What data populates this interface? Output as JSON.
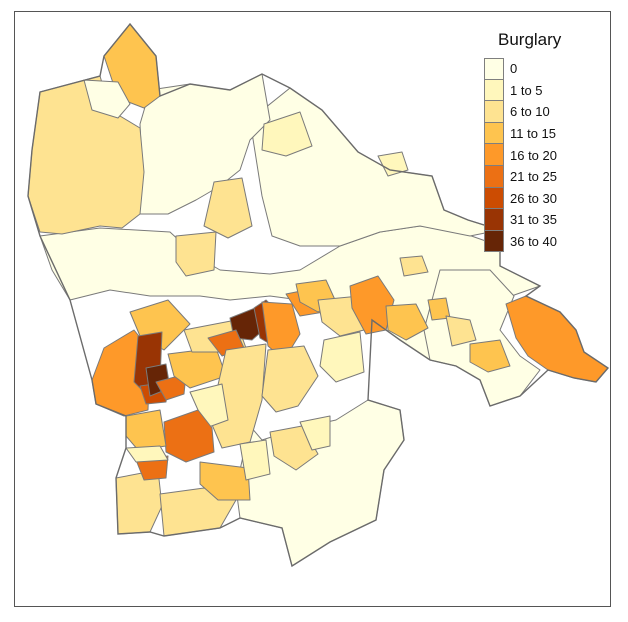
{
  "map": {
    "legend": {
      "title": "Burglary",
      "classes": [
        {
          "label": "0",
          "color": "#FFFFE5"
        },
        {
          "label": "1 to 5",
          "color": "#FFF7BC"
        },
        {
          "label": "6 to 10",
          "color": "#FEE391"
        },
        {
          "label": "11 to 15",
          "color": "#FEC44F"
        },
        {
          "label": "16 to 20",
          "color": "#FE9929"
        },
        {
          "label": "21 to 25",
          "color": "#EC7014"
        },
        {
          "label": "26 to 30",
          "color": "#CC4C02"
        },
        {
          "label": "31 to 35",
          "color": "#993404"
        },
        {
          "label": "36 to 40",
          "color": "#662506"
        }
      ]
    },
    "border_color": "#7a7a7a",
    "frame_color": "#555555"
  }
}
